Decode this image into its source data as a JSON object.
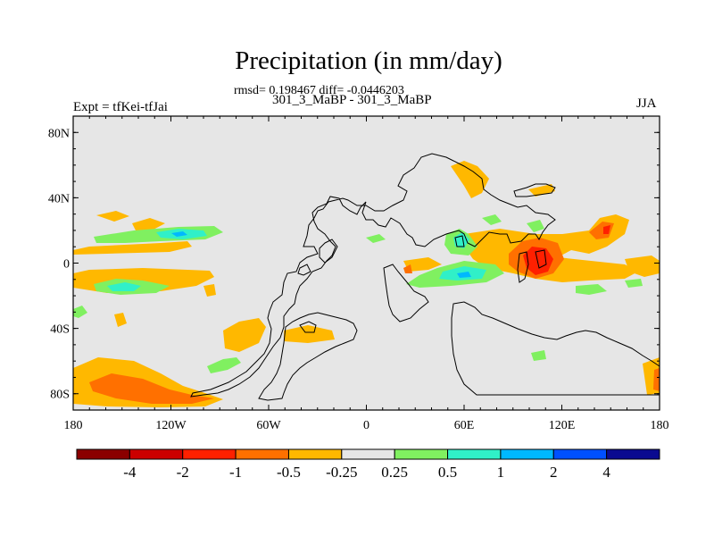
{
  "title": "Precipitation (in mm/day)",
  "stats": "rmsd= 0.198467 diff= -0.0446203",
  "subtitle": "301_3_MaBP - 301_3_MaBP",
  "left_label": "Expt = tfKei-tfJai",
  "right_label": "JJA",
  "map": {
    "lon_range": [
      -180,
      180
    ],
    "lat_range": [
      -90,
      90
    ],
    "background_color": "#e6e6e6",
    "y_ticks": [
      {
        "lat": 80,
        "label": "80N"
      },
      {
        "lat": 40,
        "label": "40N"
      },
      {
        "lat": 0,
        "label": "0"
      },
      {
        "lat": -40,
        "label": "40S"
      },
      {
        "lat": -80,
        "label": "80S"
      }
    ],
    "x_ticks": [
      {
        "lon": -180,
        "label": "180"
      },
      {
        "lon": -120,
        "label": "120W"
      },
      {
        "lon": -60,
        "label": "60W"
      },
      {
        "lon": 0,
        "label": "0"
      },
      {
        "lon": 60,
        "label": "60E"
      },
      {
        "lon": 120,
        "label": "120E"
      },
      {
        "lon": 180,
        "label": "180"
      }
    ]
  },
  "colorbar": {
    "colors": [
      "#8b0000",
      "#cc0000",
      "#ff2000",
      "#ff7000",
      "#ffb800",
      "#e6e6e6",
      "#80f060",
      "#30f0c8",
      "#00b8ff",
      "#0050ff",
      "#0a0a90"
    ],
    "labels": [
      "-4",
      "-2",
      "-1",
      "-0.5",
      "-0.25",
      "0.25",
      "0.5",
      "1",
      "2",
      "4"
    ]
  }
}
